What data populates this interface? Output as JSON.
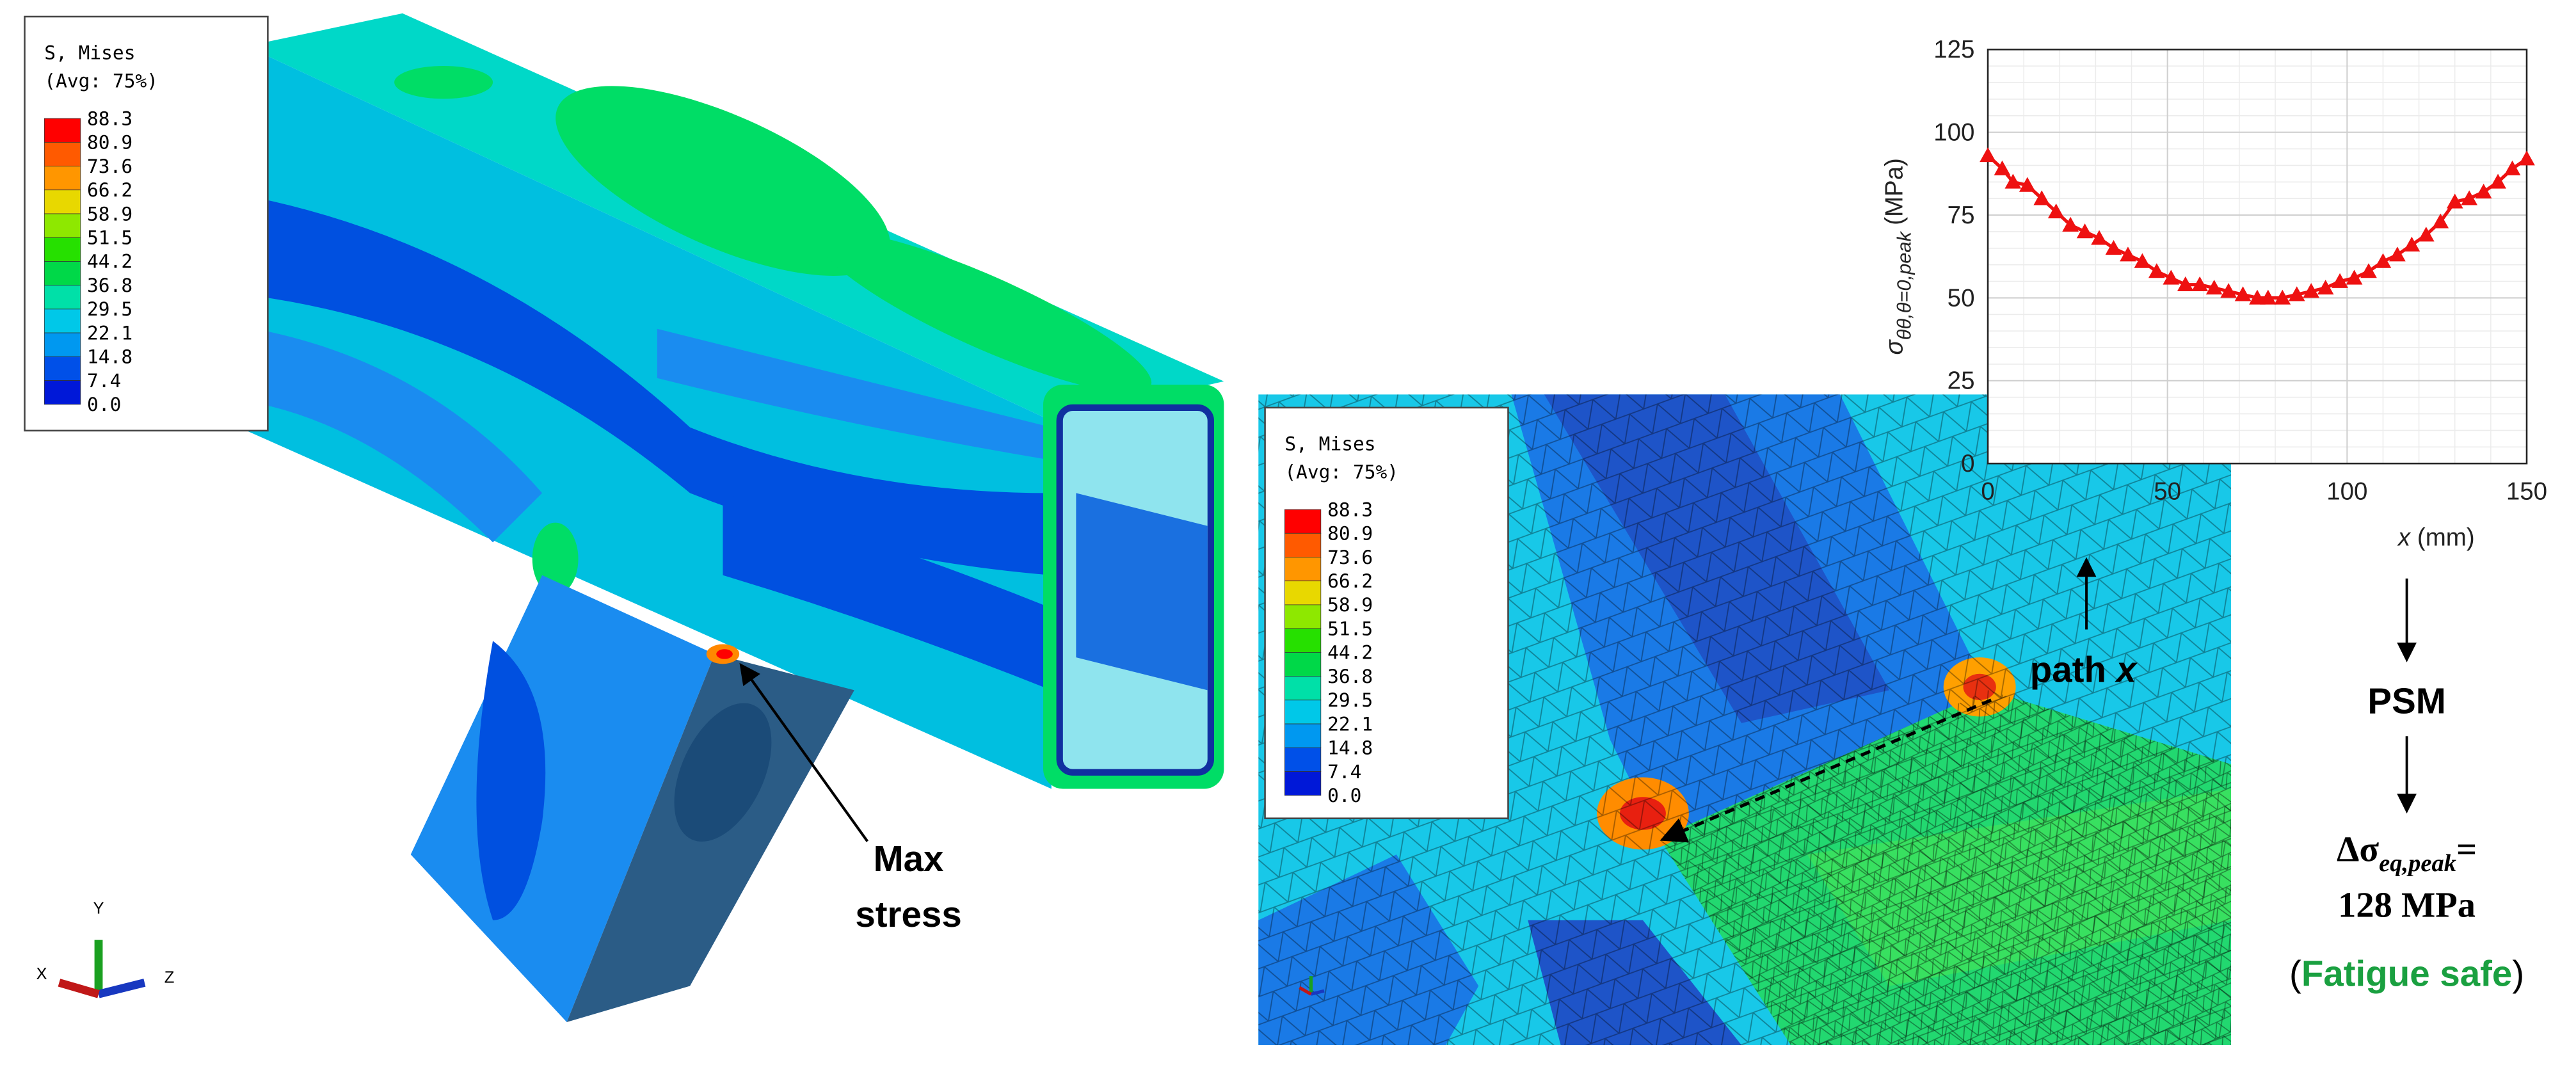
{
  "chart_data": {
    "type": "line",
    "ylabel": {
      "symbol": "σ",
      "subscript": "θθ,θ=0,peak",
      "unit": "(MPa)"
    },
    "xlabel": {
      "symbol": "x",
      "unit": "(mm)"
    },
    "x": [
      0,
      4,
      7,
      11,
      15,
      19,
      23,
      27,
      31,
      35,
      39,
      43,
      47,
      51,
      55,
      59,
      63,
      67,
      71,
      75,
      78,
      82,
      86,
      90,
      94,
      98,
      102,
      106,
      110,
      114,
      118,
      122,
      126,
      130,
      134,
      138,
      142,
      146,
      150
    ],
    "series": [
      {
        "color": "#ee1111",
        "values": [
          93,
          89,
          85,
          84,
          80,
          76,
          72,
          70,
          68,
          65,
          63,
          61,
          58,
          56,
          54,
          54,
          53,
          52,
          51,
          50,
          50,
          50,
          51,
          52,
          53,
          55,
          56,
          58,
          61,
          63,
          66,
          69,
          73,
          79,
          80,
          82,
          85,
          89,
          92
        ]
      }
    ],
    "xlim": [
      0,
      150
    ],
    "xticks": [
      0,
      50,
      100,
      150
    ],
    "ylim": [
      0,
      125
    ],
    "yticks": [
      0,
      25,
      50,
      75,
      100,
      125
    ],
    "grid": true
  },
  "contour_legend": {
    "title": "S, Mises",
    "subtitle": "(Avg: 75%)",
    "levels": [
      "88.3",
      "80.9",
      "73.6",
      "66.2",
      "58.9",
      "51.5",
      "44.2",
      "36.8",
      "29.5",
      "22.1",
      "14.8",
      "7.4",
      "0.0"
    ]
  },
  "annotations": {
    "max_stress": [
      "Max",
      "stress"
    ],
    "path": {
      "text": "path",
      "symbol": "x"
    },
    "method": "PSM",
    "result": {
      "symbol": "Δσ",
      "subscript": "eq,peak",
      "equals": "=",
      "value": "128 MPa"
    },
    "verdict": {
      "open": "(",
      "text": "Fatigue safe",
      "close": ")"
    }
  },
  "axis_triad": {
    "y": "Y",
    "x": "X",
    "z": "Z"
  }
}
